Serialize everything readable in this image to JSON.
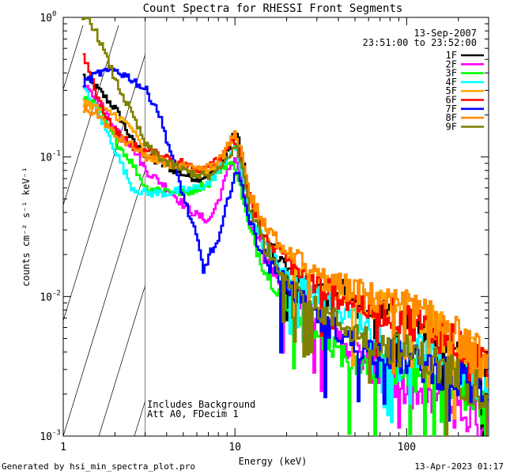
{
  "chart_data": {
    "type": "line",
    "title": "Count Spectra for RHESSI Front Segments",
    "xlabel": "Energy (keV)",
    "ylabel": "counts cm⁻² s⁻¹ keV⁻¹",
    "x_scale": "log",
    "y_scale": "log",
    "xlim": [
      1,
      300
    ],
    "ylim": [
      0.001,
      1
    ],
    "x_ticks": [
      {
        "value": 1,
        "label": "1"
      },
      {
        "value": 10,
        "label": "10"
      },
      {
        "value": 100,
        "label": "100"
      }
    ],
    "y_ticks": [
      {
        "value": 1,
        "label": "10",
        "exp": "0"
      },
      {
        "value": 0.1,
        "label": "10",
        "exp": "-1"
      },
      {
        "value": 0.01,
        "label": "10",
        "exp": "-2"
      },
      {
        "value": 0.001,
        "label": "10",
        "exp": "-3"
      }
    ],
    "date": "13-Sep-2007",
    "time_range": "23:51:00 to 23:52:00",
    "hatched_region_max_keV": 3,
    "annotations": [
      "Includes Background",
      "Att A0, FDecim 1"
    ],
    "series": [
      {
        "name": "1F",
        "color": "#000000",
        "points": [
          [
            1.3,
            0.38
          ],
          [
            1.6,
            0.3
          ],
          [
            2,
            0.22
          ],
          [
            2.5,
            0.13
          ],
          [
            3,
            0.1
          ],
          [
            4,
            0.085
          ],
          [
            5,
            0.075
          ],
          [
            6,
            0.07
          ],
          [
            7,
            0.075
          ],
          [
            8,
            0.085
          ],
          [
            9,
            0.11
          ],
          [
            10,
            0.155
          ],
          [
            11,
            0.1
          ],
          [
            12,
            0.05
          ],
          [
            14,
            0.028
          ],
          [
            17,
            0.02
          ],
          [
            20,
            0.015
          ],
          [
            25,
            0.012
          ],
          [
            30,
            0.011
          ],
          [
            35,
            0.01
          ],
          [
            40,
            0.011
          ],
          [
            50,
            0.009
          ],
          [
            60,
            0.008
          ],
          [
            70,
            0.0075
          ],
          [
            80,
            0.007
          ],
          [
            90,
            0.0068
          ],
          [
            100,
            0.007
          ],
          [
            120,
            0.0065
          ],
          [
            150,
            0.0055
          ],
          [
            180,
            0.0045
          ],
          [
            200,
            0.004
          ],
          [
            250,
            0.003
          ],
          [
            300,
            0.0025
          ]
        ]
      },
      {
        "name": "2F",
        "color": "#ff00ff",
        "points": [
          [
            1.3,
            0.32
          ],
          [
            1.6,
            0.25
          ],
          [
            2,
            0.16
          ],
          [
            2.5,
            0.12
          ],
          [
            3,
            0.08
          ],
          [
            4,
            0.06
          ],
          [
            5,
            0.045
          ],
          [
            6,
            0.038
          ],
          [
            7,
            0.035
          ],
          [
            8,
            0.05
          ],
          [
            9,
            0.08
          ],
          [
            10,
            0.1
          ],
          [
            11,
            0.06
          ],
          [
            12,
            0.035
          ],
          [
            15,
            0.018
          ],
          [
            20,
            0.012
          ],
          [
            25,
            0.009
          ],
          [
            30,
            0.007
          ],
          [
            40,
            0.005
          ],
          [
            50,
            0.004
          ],
          [
            60,
            0.0032
          ],
          [
            80,
            0.0025
          ],
          [
            100,
            0.002
          ],
          [
            150,
            0.0018
          ],
          [
            200,
            0.0015
          ],
          [
            300,
            0.0012
          ]
        ]
      },
      {
        "name": "3F",
        "color": "#00ff00",
        "points": [
          [
            1.3,
            0.27
          ],
          [
            1.6,
            0.22
          ],
          [
            2,
            0.13
          ],
          [
            2.5,
            0.09
          ],
          [
            3,
            0.06
          ],
          [
            4,
            0.058
          ],
          [
            5,
            0.055
          ],
          [
            6,
            0.06
          ],
          [
            7,
            0.065
          ],
          [
            8,
            0.08
          ],
          [
            9,
            0.09
          ],
          [
            10,
            0.085
          ],
          [
            11,
            0.05
          ],
          [
            12,
            0.03
          ],
          [
            15,
            0.015
          ],
          [
            20,
            0.009
          ],
          [
            25,
            0.006
          ],
          [
            30,
            0.005
          ],
          [
            40,
            0.004
          ],
          [
            50,
            0.0035
          ],
          [
            70,
            0.003
          ],
          [
            100,
            0.0028
          ],
          [
            150,
            0.0024
          ],
          [
            200,
            0.002
          ],
          [
            300,
            0.0015
          ]
        ]
      },
      {
        "name": "4F",
        "color": "#00ffff",
        "points": [
          [
            1.3,
            0.31
          ],
          [
            1.6,
            0.2
          ],
          [
            2,
            0.11
          ],
          [
            2.5,
            0.06
          ],
          [
            3,
            0.055
          ],
          [
            4,
            0.055
          ],
          [
            5,
            0.058
          ],
          [
            6,
            0.06
          ],
          [
            7,
            0.065
          ],
          [
            8,
            0.08
          ],
          [
            9,
            0.1
          ],
          [
            10,
            0.12
          ],
          [
            11,
            0.07
          ],
          [
            12,
            0.04
          ],
          [
            15,
            0.022
          ],
          [
            20,
            0.015
          ],
          [
            25,
            0.012
          ],
          [
            30,
            0.01
          ],
          [
            40,
            0.008
          ],
          [
            50,
            0.007
          ],
          [
            70,
            0.0055
          ],
          [
            100,
            0.0045
          ],
          [
            150,
            0.0035
          ],
          [
            200,
            0.003
          ],
          [
            300,
            0.0022
          ]
        ]
      },
      {
        "name": "5F",
        "color": "#ffa500",
        "points": [
          [
            1.3,
            0.25
          ],
          [
            1.6,
            0.22
          ],
          [
            2,
            0.2
          ],
          [
            2.5,
            0.16
          ],
          [
            3,
            0.1
          ],
          [
            4,
            0.09
          ],
          [
            5,
            0.085
          ],
          [
            6,
            0.08
          ],
          [
            7,
            0.08
          ],
          [
            8,
            0.09
          ],
          [
            9,
            0.11
          ],
          [
            10,
            0.14
          ],
          [
            11,
            0.09
          ],
          [
            12,
            0.05
          ],
          [
            15,
            0.028
          ],
          [
            20,
            0.02
          ],
          [
            25,
            0.015
          ],
          [
            30,
            0.013
          ],
          [
            40,
            0.011
          ],
          [
            50,
            0.01
          ],
          [
            60,
            0.009
          ],
          [
            70,
            0.0085
          ],
          [
            80,
            0.008
          ],
          [
            100,
            0.0078
          ],
          [
            120,
            0.0072
          ],
          [
            150,
            0.006
          ],
          [
            200,
            0.0045
          ],
          [
            250,
            0.0035
          ],
          [
            300,
            0.0028
          ]
        ]
      },
      {
        "name": "6F",
        "color": "#ff0000",
        "points": [
          [
            1.3,
            0.53
          ],
          [
            1.6,
            0.25
          ],
          [
            2,
            0.15
          ],
          [
            2.5,
            0.12
          ],
          [
            3,
            0.11
          ],
          [
            4,
            0.1
          ],
          [
            5,
            0.09
          ],
          [
            6,
            0.08
          ],
          [
            7,
            0.09
          ],
          [
            8,
            0.1
          ],
          [
            9,
            0.12
          ],
          [
            10,
            0.13
          ],
          [
            11,
            0.09
          ],
          [
            12,
            0.05
          ],
          [
            15,
            0.025
          ],
          [
            20,
            0.018
          ],
          [
            25,
            0.014
          ],
          [
            30,
            0.012
          ],
          [
            40,
            0.01
          ],
          [
            50,
            0.009
          ],
          [
            60,
            0.0082
          ],
          [
            80,
            0.0075
          ],
          [
            100,
            0.0068
          ],
          [
            150,
            0.0055
          ],
          [
            200,
            0.0045
          ],
          [
            300,
            0.003
          ]
        ]
      },
      {
        "name": "7F",
        "color": "#0000ff",
        "points": [
          [
            1.3,
            0.34
          ],
          [
            1.6,
            0.4
          ],
          [
            2,
            0.42
          ],
          [
            2.5,
            0.36
          ],
          [
            3,
            0.3
          ],
          [
            3.5,
            0.22
          ],
          [
            4,
            0.13
          ],
          [
            4.5,
            0.08
          ],
          [
            5,
            0.05
          ],
          [
            6,
            0.025
          ],
          [
            6.5,
            0.015
          ],
          [
            7,
            0.02
          ],
          [
            8,
            0.025
          ],
          [
            9,
            0.05
          ],
          [
            10,
            0.08
          ],
          [
            11,
            0.06
          ],
          [
            12,
            0.035
          ],
          [
            15,
            0.018
          ],
          [
            20,
            0.012
          ],
          [
            25,
            0.009
          ],
          [
            30,
            0.007
          ],
          [
            40,
            0.0055
          ],
          [
            50,
            0.0045
          ],
          [
            70,
            0.004
          ],
          [
            100,
            0.0035
          ],
          [
            150,
            0.003
          ],
          [
            200,
            0.0025
          ],
          [
            300,
            0.002
          ]
        ]
      },
      {
        "name": "8F",
        "color": "#ff8c00",
        "points": [
          [
            1.3,
            0.22
          ],
          [
            1.6,
            0.2
          ],
          [
            2,
            0.14
          ],
          [
            2.5,
            0.12
          ],
          [
            3,
            0.1
          ],
          [
            4,
            0.09
          ],
          [
            5,
            0.085
          ],
          [
            6,
            0.08
          ],
          [
            7,
            0.085
          ],
          [
            8,
            0.095
          ],
          [
            9,
            0.12
          ],
          [
            10,
            0.15
          ],
          [
            11,
            0.1
          ],
          [
            12,
            0.055
          ],
          [
            15,
            0.03
          ],
          [
            20,
            0.022
          ],
          [
            25,
            0.017
          ],
          [
            30,
            0.014
          ],
          [
            40,
            0.012
          ],
          [
            50,
            0.011
          ],
          [
            60,
            0.01
          ],
          [
            70,
            0.0095
          ],
          [
            80,
            0.009
          ],
          [
            100,
            0.0085
          ],
          [
            120,
            0.0075
          ],
          [
            150,
            0.0065
          ],
          [
            200,
            0.005
          ],
          [
            250,
            0.004
          ],
          [
            300,
            0.003
          ]
        ]
      },
      {
        "name": "9F",
        "color": "#808000",
        "points": [
          [
            1.2,
            1.0
          ],
          [
            1.4,
            0.98
          ],
          [
            1.6,
            0.7
          ],
          [
            2,
            0.35
          ],
          [
            2.5,
            0.2
          ],
          [
            3,
            0.12
          ],
          [
            4,
            0.09
          ],
          [
            5,
            0.08
          ],
          [
            6,
            0.075
          ],
          [
            7,
            0.072
          ],
          [
            8,
            0.08
          ],
          [
            9,
            0.1
          ],
          [
            10,
            0.12
          ],
          [
            11,
            0.08
          ],
          [
            12,
            0.045
          ],
          [
            15,
            0.022
          ],
          [
            20,
            0.014
          ],
          [
            25,
            0.01
          ],
          [
            30,
            0.008
          ],
          [
            40,
            0.0065
          ],
          [
            50,
            0.0055
          ],
          [
            70,
            0.0045
          ],
          [
            100,
            0.004
          ],
          [
            150,
            0.0032
          ],
          [
            200,
            0.0026
          ],
          [
            300,
            0.002
          ]
        ]
      }
    ]
  },
  "footer": {
    "generated": "Generated by hsi_min_spectra_plot.pro",
    "timestamp": "13-Apr-2023 01:17"
  }
}
